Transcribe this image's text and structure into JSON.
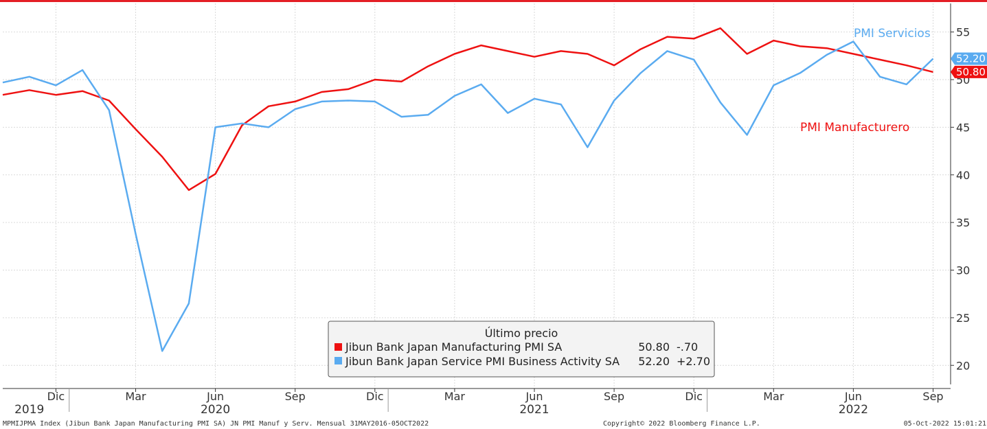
{
  "colors": {
    "manufacturing": "#ee1111",
    "services": "#5aabf0",
    "top_border": "#e41e26",
    "grid": "#d9d9d9"
  },
  "chart_data": {
    "type": "line",
    "x": [
      "2019-10",
      "2019-11",
      "2019-12",
      "2020-01",
      "2020-02",
      "2020-03",
      "2020-04",
      "2020-05",
      "2020-06",
      "2020-07",
      "2020-08",
      "2020-09",
      "2020-10",
      "2020-11",
      "2020-12",
      "2021-01",
      "2021-02",
      "2021-03",
      "2021-04",
      "2021-05",
      "2021-06",
      "2021-07",
      "2021-08",
      "2021-09",
      "2021-10",
      "2021-11",
      "2021-12",
      "2022-01",
      "2022-02",
      "2022-03",
      "2022-04",
      "2022-05",
      "2022-06",
      "2022-07",
      "2022-08",
      "2022-09"
    ],
    "series": [
      {
        "name": "Jibun Bank Japan Manufacturing PMI SA",
        "values": [
          48.4,
          48.9,
          48.4,
          48.8,
          47.8,
          44.8,
          41.9,
          38.4,
          40.1,
          45.2,
          47.2,
          47.7,
          48.7,
          49.0,
          50.0,
          49.8,
          51.4,
          52.7,
          53.6,
          53.0,
          52.4,
          53.0,
          52.7,
          51.5,
          53.2,
          54.5,
          54.3,
          55.4,
          52.7,
          54.1,
          53.5,
          53.3,
          52.7,
          52.1,
          51.5,
          50.8
        ]
      },
      {
        "name": "Jibun Bank Japan Service PMI Business Activity SA",
        "values": [
          49.7,
          50.3,
          49.4,
          51.0,
          46.8,
          33.8,
          21.5,
          26.5,
          45.0,
          45.4,
          45.0,
          46.9,
          47.7,
          47.8,
          47.7,
          46.1,
          46.3,
          48.3,
          49.5,
          46.5,
          48.0,
          47.4,
          42.9,
          47.8,
          50.7,
          53.0,
          52.1,
          47.6,
          44.2,
          49.4,
          50.7,
          52.6,
          54.0,
          50.3,
          49.5,
          52.2
        ]
      }
    ],
    "ylim": [
      18,
      58
    ],
    "y_ticks": [
      "55",
      "50",
      "45",
      "40",
      "35",
      "30",
      "25",
      "20"
    ],
    "y_tick_values": [
      55,
      50,
      45,
      40,
      35,
      30,
      25,
      20
    ],
    "month_ticks": [
      {
        "x": "2019-12",
        "label": "Dic"
      },
      {
        "x": "2020-03",
        "label": "Mar"
      },
      {
        "x": "2020-06",
        "label": "Jun"
      },
      {
        "x": "2020-09",
        "label": "Sep"
      },
      {
        "x": "2020-12",
        "label": "Dic"
      },
      {
        "x": "2021-03",
        "label": "Mar"
      },
      {
        "x": "2021-06",
        "label": "Jun"
      },
      {
        "x": "2021-09",
        "label": "Sep"
      },
      {
        "x": "2021-12",
        "label": "Dic"
      },
      {
        "x": "2022-03",
        "label": "Mar"
      },
      {
        "x": "2022-06",
        "label": "Jun"
      },
      {
        "x": "2022-09",
        "label": "Sep"
      }
    ],
    "year_labels": [
      {
        "x": "2019-11",
        "label": "2019"
      },
      {
        "x": "2020-06",
        "label": "2020"
      },
      {
        "x": "2021-06",
        "label": "2021"
      },
      {
        "x": "2022-06",
        "label": "2022"
      }
    ],
    "inline_labels": {
      "services": "PMI Servicios",
      "manufacturing": "PMI Manufacturero"
    },
    "last_value_tags": {
      "services": "52.20",
      "manufacturing": "50.80"
    },
    "legend": {
      "title": "Último precio",
      "rows": [
        {
          "name": "Jibun Bank Japan Manufacturing PMI SA",
          "last": "50.80",
          "change": "-.70"
        },
        {
          "name": "Jibun Bank Japan Service PMI Business Activity SA",
          "last": "52.20",
          "change": "+2.70"
        }
      ]
    },
    "grid": true
  },
  "footer": {
    "source": "MPMIJPMA Index (Jibun Bank Japan Manufacturing PMI SA) JN PMI Manuf y Serv.  Mensual 31MAY2016-05OCT2022",
    "copyright": "Copyright© 2022 Bloomberg Finance L.P.",
    "timestamp": "05-Oct-2022 15:01:21"
  }
}
